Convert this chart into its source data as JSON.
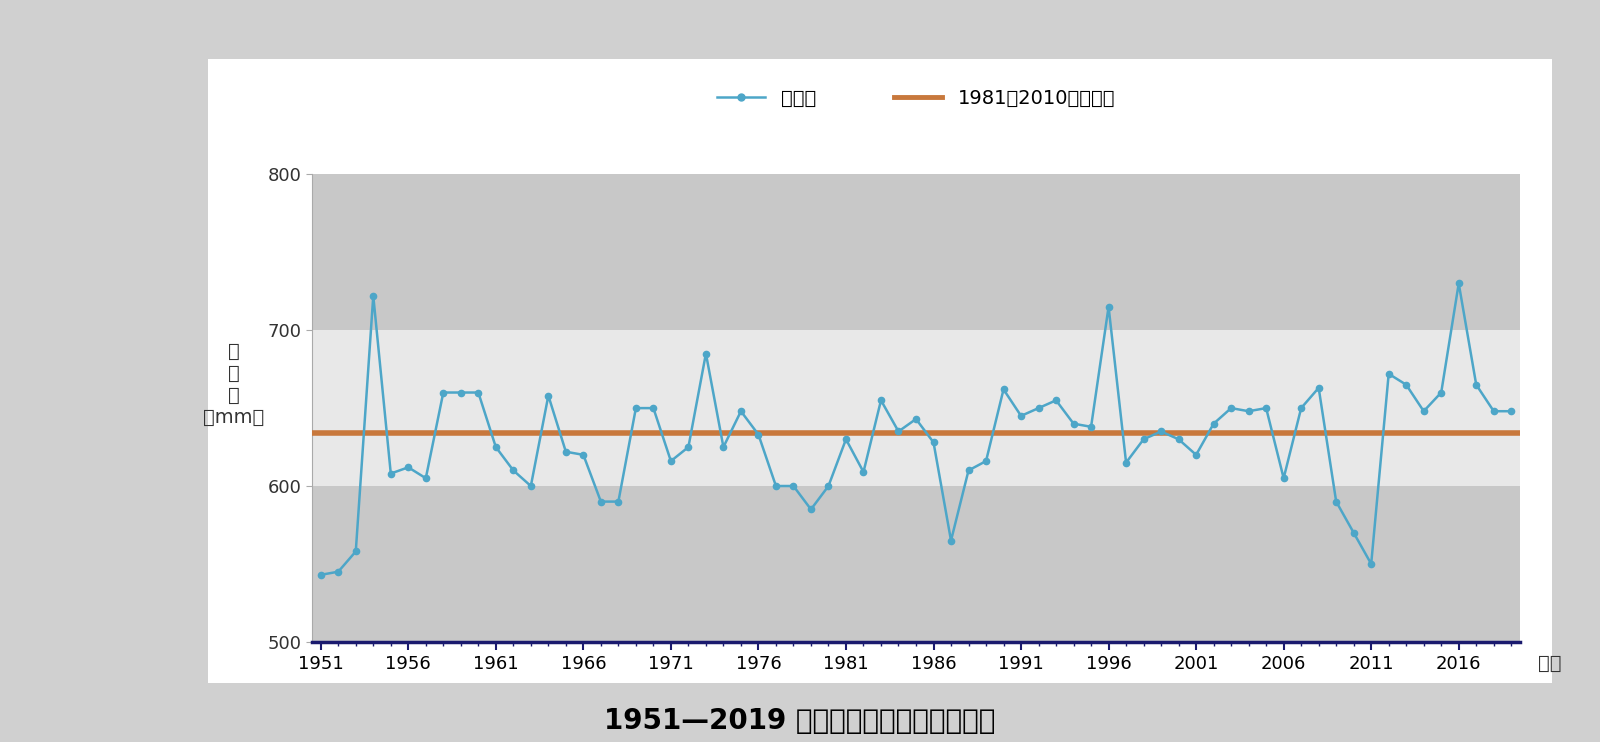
{
  "years": [
    1951,
    1952,
    1953,
    1954,
    1955,
    1956,
    1957,
    1958,
    1959,
    1960,
    1961,
    1962,
    1963,
    1964,
    1965,
    1966,
    1967,
    1968,
    1969,
    1970,
    1971,
    1972,
    1973,
    1974,
    1975,
    1976,
    1977,
    1978,
    1979,
    1980,
    1981,
    1982,
    1983,
    1984,
    1985,
    1986,
    1987,
    1988,
    1989,
    1990,
    1991,
    1992,
    1993,
    1994,
    1995,
    1996,
    1997,
    1998,
    1999,
    2000,
    2001,
    2002,
    2003,
    2004,
    2005,
    2006,
    2007,
    2008,
    2009,
    2010,
    2011,
    2012,
    2013,
    2014,
    2015,
    2016,
    2017,
    2018,
    2019
  ],
  "values": [
    543,
    545,
    558,
    722,
    608,
    612,
    605,
    660,
    660,
    660,
    625,
    610,
    600,
    658,
    622,
    620,
    590,
    590,
    650,
    650,
    616,
    625,
    685,
    625,
    648,
    633,
    600,
    600,
    585,
    600,
    630,
    609,
    655,
    635,
    643,
    628,
    565,
    610,
    616,
    662,
    645,
    650,
    655,
    640,
    638,
    715,
    615,
    630,
    635,
    630,
    620,
    640,
    650,
    648,
    650,
    605,
    650,
    663,
    590,
    570,
    550,
    672,
    665,
    648,
    660,
    730,
    665,
    648,
    648
  ],
  "mean_value": 634,
  "ylim": [
    500,
    800
  ],
  "yticks": [
    500,
    600,
    700,
    800
  ],
  "xticks": [
    1951,
    1956,
    1961,
    1966,
    1971,
    1976,
    1981,
    1986,
    1991,
    1996,
    2001,
    2006,
    2011,
    2016
  ],
  "line_color": "#4da6c8",
  "mean_color": "#c8783c",
  "plot_bg_color": "#c8c8c8",
  "white_band_lo": 600,
  "white_band_hi": 700,
  "white_band_color": "#e8e8e8",
  "outer_bg": "#d0d0d0",
  "inner_bg": "#ffffff",
  "bottom_spine_color": "#1a1a6e",
  "title": "1951—2019 年全国平均降水量年际变化",
  "ylabel_lines": [
    "降",
    "水",
    "量",
    "（mm）"
  ],
  "xlabel_end": "年份",
  "legend_line": "历年値",
  "legend_mean": "1981－2010年平均値",
  "title_fontsize": 20,
  "label_fontsize": 14,
  "tick_fontsize": 13,
  "legend_fontsize": 14
}
